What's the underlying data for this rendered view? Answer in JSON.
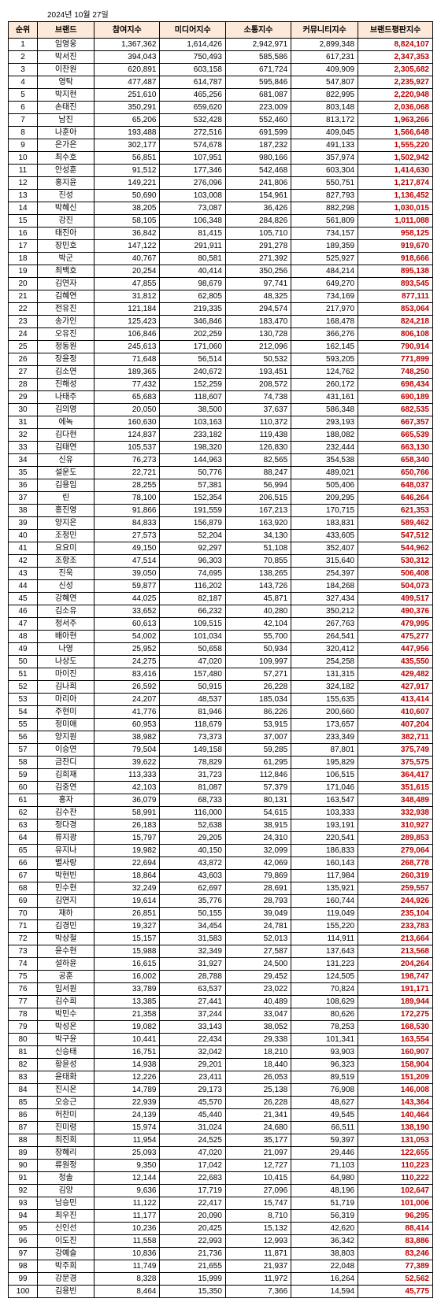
{
  "date": "2024년 10월 27일",
  "headers": [
    "순위",
    "브랜드",
    "참여지수",
    "미디어지수",
    "소통지수",
    "커뮤니티지수",
    "브랜드평판지수"
  ],
  "rows": [
    [
      1,
      "임영웅",
      "1,367,362",
      "1,614,426",
      "2,942,971",
      "2,899,348",
      "8,824,107"
    ],
    [
      2,
      "박서진",
      "394,043",
      "750,493",
      "585,586",
      "617,231",
      "2,347,353"
    ],
    [
      3,
      "이찬원",
      "620,891",
      "603,158",
      "671,724",
      "409,909",
      "2,305,682"
    ],
    [
      4,
      "영탁",
      "477,487",
      "614,787",
      "595,846",
      "547,807",
      "2,235,927"
    ],
    [
      5,
      "박지현",
      "251,610",
      "465,256",
      "681,087",
      "822,995",
      "2,220,948"
    ],
    [
      6,
      "손태진",
      "350,291",
      "659,620",
      "223,009",
      "803,148",
      "2,036,068"
    ],
    [
      7,
      "남진",
      "65,206",
      "532,428",
      "552,460",
      "813,172",
      "1,963,266"
    ],
    [
      8,
      "나훈아",
      "193,488",
      "272,516",
      "691,599",
      "409,045",
      "1,566,648"
    ],
    [
      9,
      "은가은",
      "302,177",
      "574,678",
      "187,232",
      "491,133",
      "1,555,220"
    ],
    [
      10,
      "최수호",
      "56,851",
      "107,951",
      "980,166",
      "357,974",
      "1,502,942"
    ],
    [
      11,
      "안성훈",
      "91,512",
      "177,346",
      "542,468",
      "603,304",
      "1,414,630"
    ],
    [
      12,
      "홍지윤",
      "149,221",
      "276,096",
      "241,806",
      "550,751",
      "1,217,874"
    ],
    [
      13,
      "진성",
      "50,690",
      "103,008",
      "154,961",
      "827,793",
      "1,136,452"
    ],
    [
      14,
      "박혜신",
      "38,205",
      "73,087",
      "36,426",
      "882,298",
      "1,030,015"
    ],
    [
      15,
      "강진",
      "58,105",
      "106,348",
      "284,826",
      "561,809",
      "1,011,088"
    ],
    [
      16,
      "태진아",
      "36,842",
      "81,415",
      "105,710",
      "734,157",
      "958,125"
    ],
    [
      17,
      "장민호",
      "147,122",
      "291,911",
      "291,278",
      "189,359",
      "919,670"
    ],
    [
      18,
      "박군",
      "40,767",
      "80,581",
      "271,392",
      "525,927",
      "918,666"
    ],
    [
      19,
      "최백호",
      "20,254",
      "40,414",
      "350,256",
      "484,214",
      "895,138"
    ],
    [
      20,
      "김연자",
      "47,855",
      "98,679",
      "97,741",
      "649,270",
      "893,545"
    ],
    [
      21,
      "김혜연",
      "31,812",
      "62,805",
      "48,325",
      "734,169",
      "877,111"
    ],
    [
      22,
      "전유진",
      "121,184",
      "219,335",
      "294,574",
      "217,970",
      "853,064"
    ],
    [
      23,
      "송가인",
      "125,423",
      "346,846",
      "183,470",
      "168,478",
      "824,218"
    ],
    [
      24,
      "오유진",
      "106,846",
      "202,259",
      "130,728",
      "366,276",
      "806,108"
    ],
    [
      25,
      "정동원",
      "245,613",
      "171,060",
      "212,096",
      "162,145",
      "790,914"
    ],
    [
      26,
      "장윤정",
      "71,648",
      "56,514",
      "50,532",
      "593,205",
      "771,899"
    ],
    [
      27,
      "김소연",
      "189,365",
      "240,672",
      "193,451",
      "124,762",
      "748,250"
    ],
    [
      28,
      "진해성",
      "77,432",
      "152,259",
      "208,572",
      "260,172",
      "698,434"
    ],
    [
      29,
      "나태주",
      "65,683",
      "118,607",
      "74,738",
      "431,161",
      "690,189"
    ],
    [
      30,
      "김의영",
      "20,050",
      "38,500",
      "37,637",
      "586,348",
      "682,535"
    ],
    [
      31,
      "에녹",
      "160,630",
      "103,163",
      "110,372",
      "293,193",
      "667,357"
    ],
    [
      32,
      "김다현",
      "124,837",
      "233,182",
      "119,438",
      "188,082",
      "665,539"
    ],
    [
      33,
      "김태연",
      "105,537",
      "198,320",
      "126,830",
      "232,444",
      "663,130"
    ],
    [
      34,
      "신유",
      "76,273",
      "144,963",
      "82,565",
      "354,538",
      "658,340"
    ],
    [
      35,
      "설운도",
      "22,721",
      "50,776",
      "88,247",
      "489,021",
      "650,766"
    ],
    [
      36,
      "김용임",
      "28,255",
      "57,381",
      "56,994",
      "505,406",
      "648,037"
    ],
    [
      37,
      "린",
      "78,100",
      "152,354",
      "206,515",
      "209,295",
      "646,264"
    ],
    [
      38,
      "홍진영",
      "91,866",
      "191,559",
      "167,213",
      "170,715",
      "621,353"
    ],
    [
      39,
      "양지은",
      "84,833",
      "156,879",
      "163,920",
      "183,831",
      "589,462"
    ],
    [
      40,
      "조정민",
      "27,573",
      "52,204",
      "34,130",
      "433,605",
      "547,512"
    ],
    [
      41,
      "요요미",
      "49,150",
      "92,297",
      "51,108",
      "352,407",
      "544,962"
    ],
    [
      42,
      "조항조",
      "47,514",
      "96,303",
      "70,855",
      "315,640",
      "530,312"
    ],
    [
      43,
      "진욱",
      "39,050",
      "74,695",
      "138,265",
      "254,397",
      "506,408"
    ],
    [
      44,
      "신성",
      "59,877",
      "116,202",
      "143,726",
      "184,268",
      "504,073"
    ],
    [
      45,
      "강혜연",
      "44,025",
      "82,187",
      "45,871",
      "327,434",
      "499,517"
    ],
    [
      46,
      "김소유",
      "33,652",
      "66,232",
      "40,280",
      "350,212",
      "490,376"
    ],
    [
      47,
      "정서주",
      "60,613",
      "109,515",
      "42,104",
      "267,763",
      "479,995"
    ],
    [
      48,
      "배아현",
      "54,002",
      "101,034",
      "55,700",
      "264,541",
      "475,277"
    ],
    [
      49,
      "나영",
      "25,952",
      "50,658",
      "50,934",
      "320,412",
      "447,956"
    ],
    [
      50,
      "나상도",
      "24,275",
      "47,020",
      "109,997",
      "254,258",
      "435,550"
    ],
    [
      51,
      "마이진",
      "83,416",
      "157,480",
      "57,271",
      "131,315",
      "429,482"
    ],
    [
      52,
      "김나희",
      "26,592",
      "50,915",
      "26,228",
      "324,182",
      "427,917"
    ],
    [
      53,
      "마리아",
      "24,207",
      "48,537",
      "185,034",
      "155,635",
      "413,414"
    ],
    [
      54,
      "주현미",
      "41,776",
      "81,946",
      "86,226",
      "200,660",
      "410,607"
    ],
    [
      55,
      "정미애",
      "60,953",
      "118,679",
      "53,915",
      "173,657",
      "407,204"
    ],
    [
      56,
      "양지원",
      "38,982",
      "73,373",
      "37,007",
      "233,349",
      "382,711"
    ],
    [
      57,
      "이승연",
      "79,504",
      "149,158",
      "59,285",
      "87,801",
      "375,749"
    ],
    [
      58,
      "금잔디",
      "39,622",
      "78,829",
      "61,295",
      "195,829",
      "375,575"
    ],
    [
      59,
      "김희재",
      "113,333",
      "31,723",
      "112,846",
      "106,515",
      "364,417"
    ],
    [
      60,
      "김중연",
      "42,103",
      "81,087",
      "57,379",
      "171,046",
      "351,615"
    ],
    [
      61,
      "홍자",
      "36,079",
      "68,733",
      "80,131",
      "163,547",
      "348,489"
    ],
    [
      62,
      "김수찬",
      "58,991",
      "116,000",
      "54,615",
      "103,333",
      "332,938"
    ],
    [
      63,
      "정다경",
      "26,183",
      "52,638",
      "38,915",
      "193,191",
      "310,927"
    ],
    [
      64,
      "류지광",
      "15,797",
      "29,205",
      "24,310",
      "220,541",
      "289,853"
    ],
    [
      65,
      "유지나",
      "19,982",
      "40,150",
      "32,099",
      "186,833",
      "279,064"
    ],
    [
      66,
      "별사랑",
      "22,694",
      "43,872",
      "42,069",
      "160,143",
      "268,778"
    ],
    [
      67,
      "박현빈",
      "18,864",
      "43,603",
      "79,869",
      "117,984",
      "260,319"
    ],
    [
      68,
      "민수현",
      "32,249",
      "62,697",
      "28,691",
      "135,921",
      "259,557"
    ],
    [
      69,
      "김연지",
      "19,614",
      "35,776",
      "28,793",
      "160,744",
      "244,926"
    ],
    [
      70,
      "재하",
      "26,851",
      "50,155",
      "39,049",
      "119,049",
      "235,104"
    ],
    [
      71,
      "김경민",
      "19,327",
      "34,454",
      "24,781",
      "155,220",
      "233,783"
    ],
    [
      72,
      "박상철",
      "15,157",
      "31,583",
      "52,013",
      "114,911",
      "213,664"
    ],
    [
      73,
      "윤수현",
      "15,988",
      "32,349",
      "27,587",
      "137,643",
      "213,568"
    ],
    [
      74,
      "설하윤",
      "16,615",
      "31,927",
      "24,500",
      "131,223",
      "204,264"
    ],
    [
      75,
      "공훈",
      "16,002",
      "28,788",
      "29,452",
      "124,505",
      "198,747"
    ],
    [
      76,
      "임서원",
      "33,789",
      "63,537",
      "23,022",
      "70,824",
      "191,171"
    ],
    [
      77,
      "김수희",
      "13,385",
      "27,441",
      "40,489",
      "108,629",
      "189,944"
    ],
    [
      78,
      "박민수",
      "21,358",
      "37,244",
      "33,047",
      "80,626",
      "172,275"
    ],
    [
      79,
      "박성온",
      "19,082",
      "33,143",
      "38,052",
      "78,253",
      "168,530"
    ],
    [
      80,
      "박구윤",
      "10,441",
      "22,434",
      "29,338",
      "101,341",
      "163,554"
    ],
    [
      81,
      "신승태",
      "16,751",
      "32,042",
      "18,210",
      "93,903",
      "160,907"
    ],
    [
      82,
      "황윤성",
      "14,938",
      "29,201",
      "18,440",
      "96,323",
      "158,904"
    ],
    [
      83,
      "윤태화",
      "12,226",
      "23,411",
      "26,053",
      "89,519",
      "151,209"
    ],
    [
      84,
      "진시온",
      "14,789",
      "29,173",
      "25,138",
      "76,908",
      "146,008"
    ],
    [
      85,
      "오승근",
      "22,939",
      "45,570",
      "26,228",
      "48,627",
      "143,364"
    ],
    [
      86,
      "허찬미",
      "24,139",
      "45,440",
      "21,341",
      "49,545",
      "140,464"
    ],
    [
      87,
      "진미령",
      "15,974",
      "31,024",
      "24,680",
      "66,511",
      "138,190"
    ],
    [
      88,
      "최진희",
      "11,954",
      "24,525",
      "35,177",
      "59,397",
      "131,053"
    ],
    [
      89,
      "장혜리",
      "25,093",
      "47,020",
      "21,097",
      "29,446",
      "122,655"
    ],
    [
      90,
      "류원정",
      "9,350",
      "17,042",
      "12,727",
      "71,103",
      "110,223"
    ],
    [
      91,
      "청솔",
      "12,144",
      "22,683",
      "10,415",
      "64,980",
      "110,222"
    ],
    [
      92,
      "김양",
      "9,636",
      "17,719",
      "27,096",
      "48,196",
      "102,647"
    ],
    [
      93,
      "남승민",
      "11,122",
      "22,417",
      "15,747",
      "51,719",
      "101,006"
    ],
    [
      94,
      "최우진",
      "11,177",
      "20,090",
      "8,710",
      "56,319",
      "96,295"
    ],
    [
      95,
      "신인선",
      "10,236",
      "20,425",
      "15,132",
      "42,620",
      "88,414"
    ],
    [
      96,
      "이도진",
      "11,558",
      "22,993",
      "12,993",
      "36,342",
      "83,886"
    ],
    [
      97,
      "강예슬",
      "10,836",
      "21,736",
      "11,871",
      "38,803",
      "83,246"
    ],
    [
      98,
      "박주희",
      "11,749",
      "21,655",
      "21,937",
      "22,048",
      "77,389"
    ],
    [
      99,
      "강문경",
      "8,328",
      "15,999",
      "11,972",
      "16,264",
      "52,562"
    ],
    [
      100,
      "김용빈",
      "8,464",
      "15,350",
      "7,366",
      "14,594",
      "45,775"
    ]
  ]
}
